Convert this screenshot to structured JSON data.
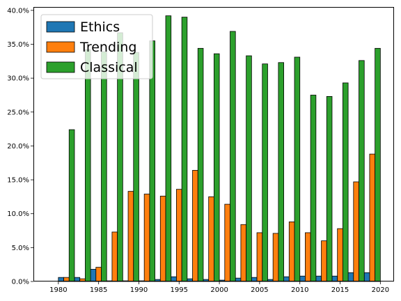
{
  "chart_data": {
    "type": "bar",
    "title": "",
    "xlabel": "",
    "ylabel": "",
    "x": [
      1981,
      1983,
      1985,
      1987,
      1989,
      1991,
      1993,
      1995,
      1997,
      1999,
      2001,
      2003,
      2005,
      2007,
      2009,
      2011,
      2013,
      2015,
      2017,
      2019
    ],
    "series": [
      {
        "name": "Ethics",
        "color": "#1f77b4",
        "values": [
          0.6,
          0.6,
          1.8,
          0.1,
          0.1,
          0.1,
          0.3,
          0.7,
          0.4,
          0.3,
          0.2,
          0.5,
          0.6,
          0.3,
          0.7,
          0.8,
          0.8,
          0.8,
          1.3,
          1.3
        ]
      },
      {
        "name": "Trending",
        "color": "#ff7f0e",
        "values": [
          0.6,
          0.4,
          2.1,
          7.3,
          13.3,
          12.9,
          12.6,
          13.6,
          16.4,
          12.5,
          11.4,
          8.4,
          7.2,
          7.1,
          8.8,
          7.2,
          6.0,
          7.8,
          14.7,
          18.8
        ]
      },
      {
        "name": "Classical",
        "color": "#2ca02c",
        "values": [
          22.4,
          34.2,
          33.9,
          36.7,
          33.8,
          35.5,
          39.2,
          39.0,
          34.4,
          33.6,
          36.9,
          33.3,
          32.1,
          32.3,
          33.1,
          27.5,
          27.3,
          29.3,
          32.6,
          34.4
        ]
      }
    ],
    "xlim": [
      1976.9,
      2021.7
    ],
    "ylim": [
      0,
      40.5
    ],
    "xticks": [
      1980,
      1985,
      1990,
      1995,
      2000,
      2005,
      2010,
      2015,
      2020
    ],
    "yticks": [
      0,
      5,
      10,
      15,
      20,
      25,
      30,
      35,
      40
    ],
    "ytick_labels": [
      "0.0%",
      "5.0%",
      "10.0%",
      "15.0%",
      "20.0%",
      "25.0%",
      "30.0%",
      "35.0%",
      "40.0%"
    ],
    "bar_group_width_years": 2,
    "legend_position": "upper-left",
    "grid": false
  }
}
